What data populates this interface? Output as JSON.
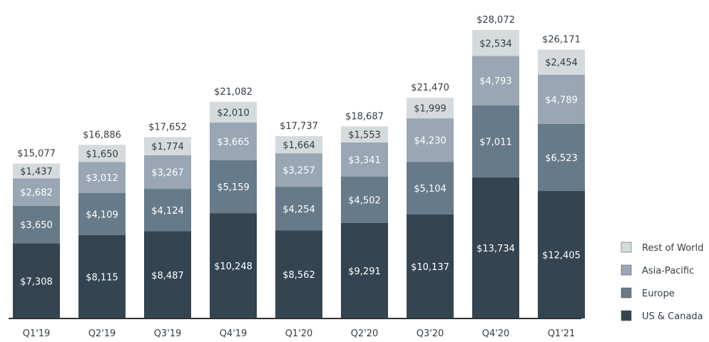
{
  "chart_data": {
    "type": "bar",
    "stacked": true,
    "title": "",
    "xlabel": "",
    "ylabel": "",
    "ylim": [
      0,
      28072
    ],
    "grid": false,
    "legend_placement": "right",
    "value_prefix": "$",
    "categories": [
      "Q1'19",
      "Q2'19",
      "Q3'19",
      "Q4'19",
      "Q1'20",
      "Q2'20",
      "Q3'20",
      "Q4'20",
      "Q1'21"
    ],
    "totals": [
      15077,
      16886,
      17652,
      21082,
      17737,
      18687,
      21470,
      28072,
      26171
    ],
    "series": [
      {
        "name": "US & Canada",
        "color": "#344551",
        "label_color": "#ffffff",
        "values": [
          7308,
          8115,
          8487,
          10248,
          8562,
          9291,
          10137,
          13734,
          12405
        ]
      },
      {
        "name": "Europe",
        "color": "#677a8a",
        "label_color": "#ffffff",
        "values": [
          3650,
          4109,
          4124,
          5159,
          4254,
          4502,
          5104,
          7011,
          6523
        ]
      },
      {
        "name": "Asia-Pacific",
        "color": "#98a7b3",
        "label_color": "#ffffff",
        "values": [
          2682,
          3012,
          3267,
          3665,
          3257,
          3341,
          4230,
          4793,
          4789
        ]
      },
      {
        "name": "Rest of World",
        "color": "#d5dadd",
        "label_color": "#333d45",
        "values": [
          1437,
          1650,
          1774,
          2010,
          1664,
          1553,
          1999,
          2534,
          2454
        ]
      }
    ]
  }
}
